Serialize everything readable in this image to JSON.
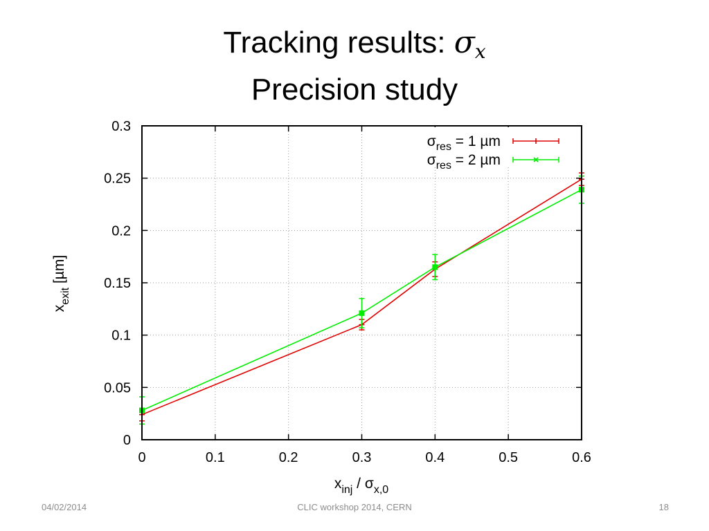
{
  "slide": {
    "title_main": "Tracking results:",
    "title_symbol": "σ",
    "title_symbol_sub": "x",
    "subtitle": "Precision study",
    "footer_date": "04/02/2014",
    "footer_center": "CLIC workshop 2014, CERN",
    "footer_page": "18"
  },
  "chart_data": {
    "type": "line",
    "xlabel": {
      "main": "x",
      "sub": "inj",
      "mid": " / σ",
      "sub2": "x,0"
    },
    "ylabel": {
      "main": "x",
      "sub": "exit",
      "tail": " [µm]"
    },
    "xlim": [
      0,
      0.6
    ],
    "ylim": [
      0,
      0.3
    ],
    "xticks": [
      0,
      0.1,
      0.2,
      0.3,
      0.4,
      0.5,
      0.6
    ],
    "xtick_labels": [
      "0",
      "0.1",
      "0.2",
      "0.3",
      "0.4",
      "0.5",
      "0.6"
    ],
    "yticks": [
      0,
      0.05,
      0.1,
      0.15,
      0.2,
      0.25,
      0.3
    ],
    "ytick_labels": [
      "0",
      "0.05",
      "0.1",
      "0.15",
      "0.2",
      "0.25",
      "0.3"
    ],
    "grid": true,
    "legend_position": "top-right",
    "series": [
      {
        "label_main": "σ",
        "label_sub": "res",
        "label_tail": " = 1 µm",
        "color": "#e00000",
        "marker": "plus",
        "x": [
          0,
          0.3,
          0.4,
          0.6
        ],
        "y": [
          0.024,
          0.11,
          0.163,
          0.249
        ],
        "err": [
          0.006,
          0.005,
          0.007,
          0.006
        ]
      },
      {
        "label_main": "σ",
        "label_sub": "res",
        "label_tail": " = 2 µm",
        "color": "#00ee00",
        "marker": "square",
        "x": [
          0,
          0.3,
          0.4,
          0.6
        ],
        "y": [
          0.028,
          0.121,
          0.165,
          0.239
        ],
        "err": [
          0.013,
          0.014,
          0.012,
          0.013
        ]
      }
    ]
  }
}
